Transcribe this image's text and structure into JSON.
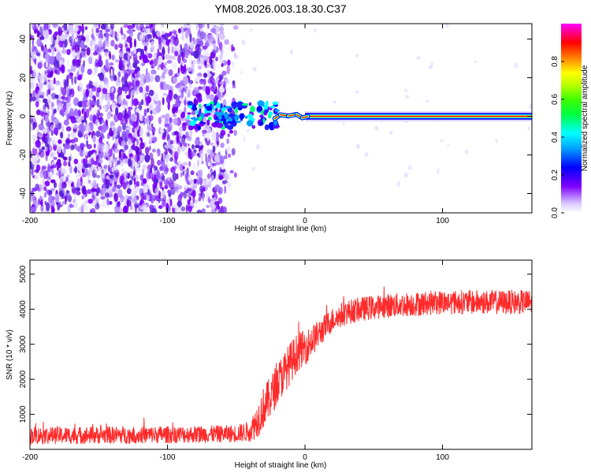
{
  "chart_data": [
    {
      "type": "heatmap",
      "title": "YM08.2026.003.18.30.C37",
      "xlabel": "Height of straight line (km)",
      "ylabel": "Frequency (Hz)",
      "xlim": [
        -200,
        165
      ],
      "ylim": [
        -50,
        48
      ],
      "xticks": [
        -200,
        -100,
        0,
        100
      ],
      "yticks": [
        -40,
        -20,
        0,
        20,
        40
      ],
      "colorbar": {
        "label": "Normalized spectral amplitude",
        "range": [
          0,
          1
        ],
        "ticks": [
          0.0,
          0.2,
          0.4,
          0.6,
          0.8
        ],
        "colors": [
          "#e8e8ff",
          "#7b00ff",
          "#0000ff",
          "#00b0ff",
          "#00ffff",
          "#00ff40",
          "#00ff00",
          "#c0ff00",
          "#ffff00",
          "#ff8000",
          "#ff0000",
          "#ff0080",
          "#ff00ff"
        ]
      },
      "regions": [
        {
          "name": "broadband noise",
          "x": [
            -200,
            -50
          ],
          "freq": [
            -50,
            48
          ],
          "amplitude": 0.05
        },
        {
          "name": "transition clusters",
          "x": [
            -85,
            -20
          ],
          "freq": [
            -6,
            7
          ],
          "amplitude": 0.3
        },
        {
          "name": "narrowband tone",
          "x": [
            -20,
            165
          ],
          "freq": [
            -1,
            1
          ],
          "amplitude": 0.95
        }
      ]
    },
    {
      "type": "line",
      "title": "",
      "xlabel": "Height of straight line (km)",
      "ylabel": "SNR (10 * v/v)",
      "xlim": [
        -200,
        165
      ],
      "ylim": [
        0,
        5400
      ],
      "xticks": [
        -200,
        -100,
        0,
        100
      ],
      "yticks": [
        1000,
        2000,
        3000,
        4000,
        5000
      ],
      "color": "#ff2a2a",
      "series": [
        {
          "name": "SNR",
          "x": [
            -200,
            -180,
            -160,
            -140,
            -120,
            -100,
            -80,
            -60,
            -50,
            -40,
            -35,
            -30,
            -25,
            -20,
            -15,
            -10,
            -5,
            0,
            5,
            10,
            15,
            20,
            25,
            30,
            40,
            50,
            60,
            80,
            100,
            120,
            140,
            165
          ],
          "y": [
            400,
            400,
            400,
            410,
            410,
            420,
            430,
            440,
            450,
            520,
            800,
            1200,
            1500,
            1900,
            2200,
            2500,
            2800,
            2900,
            3100,
            3300,
            3500,
            3700,
            3800,
            3900,
            4000,
            4050,
            4100,
            4150,
            4200,
            4200,
            4200,
            4200
          ],
          "noise": [
            250,
            250,
            250,
            250,
            250,
            250,
            250,
            250,
            250,
            300,
            500,
            600,
            600,
            600,
            600,
            600,
            550,
            500,
            450,
            400,
            380,
            350,
            350,
            350,
            350,
            350,
            350,
            350,
            350,
            350,
            350,
            350
          ]
        }
      ]
    }
  ]
}
